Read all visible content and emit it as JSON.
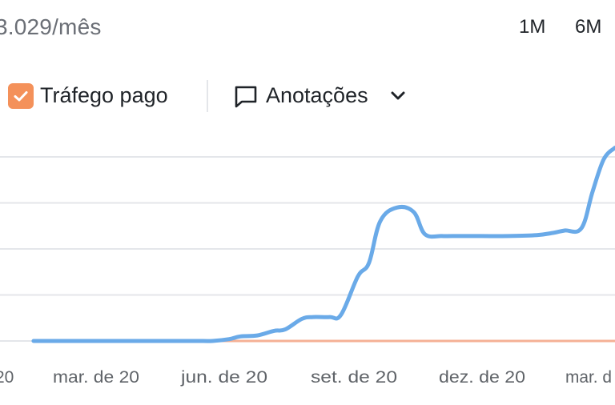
{
  "header": {
    "value_text": "3.029/mês"
  },
  "range_buttons": [
    {
      "label": "1M"
    },
    {
      "label": "6M"
    }
  ],
  "legend": {
    "paid_traffic_label": "Tráfego pago",
    "paid_traffic_checked": true,
    "annotations_label": "Anotações"
  },
  "colors": {
    "organic_line": "#6aaae8",
    "paid_line": "#f5b195",
    "checkbox": "#f4915a",
    "grid": "#e4e6ea"
  },
  "icons": {
    "checkbox": "check-icon",
    "annotations": "speech-bubble-icon",
    "dropdown": "chevron-down-icon"
  },
  "chart_data": {
    "type": "line",
    "x_tick_labels": [
      "mar. de 20",
      "jun. de 20",
      "set. de 20",
      "dez. de 20",
      "mar. d"
    ],
    "x_tick_partial_left": "20",
    "ylim": [
      0,
      4
    ],
    "grid": true,
    "y_gridlines": [
      0,
      1,
      2,
      3,
      4
    ],
    "series": [
      {
        "color": "#6aaae8",
        "x": [
          0,
          0.5,
          1,
          1.5,
          2,
          2.5,
          3,
          3.2,
          3.5,
          3.7,
          4,
          4.3,
          4.5,
          4.8,
          5,
          5.3,
          5.5,
          5.8,
          6,
          6.2,
          6.5,
          6.8,
          7,
          7.3,
          7.5,
          8,
          8.5,
          9,
          9.3,
          9.5,
          9.8,
          10,
          10.2,
          10.4
        ],
        "y": [
          0,
          0,
          0,
          0,
          0,
          0,
          0,
          0,
          0.04,
          0.1,
          0.12,
          0.22,
          0.25,
          0.48,
          0.52,
          0.52,
          0.57,
          1.4,
          1.7,
          2.6,
          2.9,
          2.8,
          2.32,
          2.28,
          2.28,
          2.28,
          2.28,
          2.3,
          2.35,
          2.4,
          2.45,
          3.25,
          3.95,
          4.2
        ]
      },
      {
        "color": "#f5b195",
        "x": [
          0,
          10.4
        ],
        "y": [
          0,
          0
        ]
      }
    ],
    "x_domain": [
      -0.6,
      10.4
    ]
  }
}
